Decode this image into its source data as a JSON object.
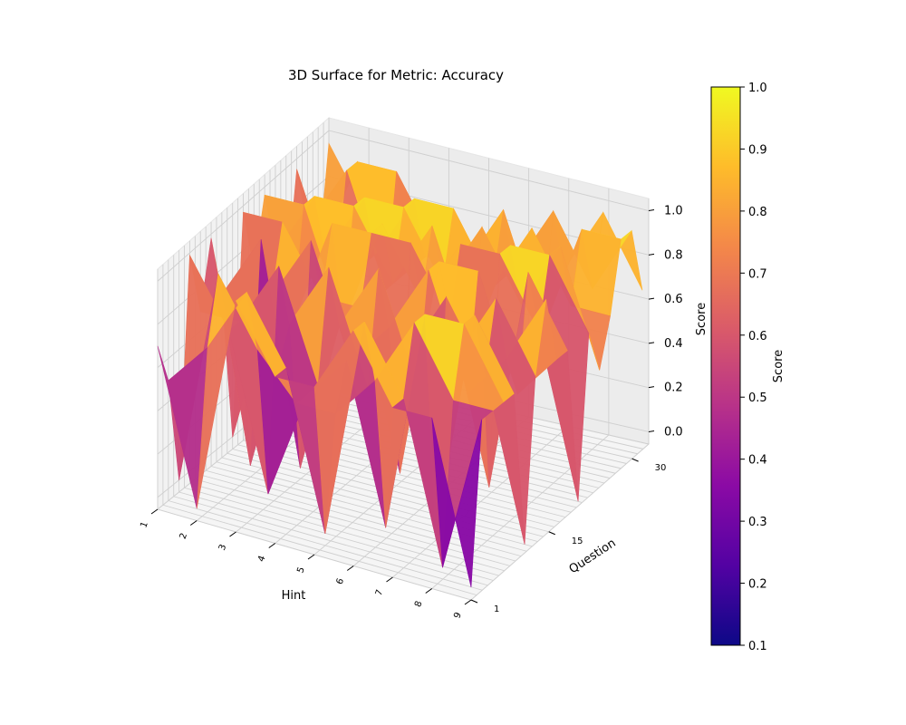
{
  "chart_data": {
    "type": "surface3d",
    "title": "3D Surface for Metric: Accuracy",
    "xlabel": "Hint",
    "ylabel": "Question",
    "zlabel": "Score",
    "x_ticks": [
      "1",
      "2",
      "3",
      "4",
      "5",
      "6",
      "7",
      "8",
      "9"
    ],
    "y_ticks": [
      "1",
      "15",
      "30"
    ],
    "z_ticks": [
      "0.0",
      "0.2",
      "0.4",
      "0.6",
      "0.8",
      "1.0"
    ],
    "xlim": [
      1,
      9
    ],
    "ylim": [
      1,
      33
    ],
    "zlim": [
      0,
      1
    ],
    "grid": true,
    "colormap": "plasma",
    "colormap_stops": [
      "#0d0887",
      "#5302a3",
      "#8b0aa5",
      "#b83289",
      "#db5c68",
      "#f48849",
      "#febc2a",
      "#f0f921"
    ],
    "colorbar": {
      "label": "Score",
      "range": [
        0.1,
        1.0
      ],
      "ticks": [
        "0.1",
        "0.2",
        "0.3",
        "0.4",
        "0.5",
        "0.6",
        "0.7",
        "0.8",
        "0.9",
        "1.0"
      ]
    },
    "series": [
      {
        "y": 1,
        "values": [
          0.7,
          0.0,
          1.0,
          0.7,
          0.7,
          1.0,
          0.7,
          0.7,
          0.0
        ]
      },
      {
        "y": 3,
        "values": [
          0.5,
          0.7,
          1.0,
          0.7,
          0.0,
          1.0,
          0.7,
          0.0,
          0.7
        ]
      },
      {
        "y": 5,
        "values": [
          0.0,
          1.0,
          0.7,
          0.5,
          0.5,
          0.7,
          1.0,
          0.7,
          0.7
        ]
      },
      {
        "y": 7,
        "values": [
          1.0,
          0.7,
          0.0,
          0.5,
          0.7,
          0.0,
          1.0,
          1.0,
          0.7
        ]
      },
      {
        "y": 9,
        "values": [
          0.7,
          0.7,
          1.0,
          0.5,
          0.5,
          0.7,
          0.0,
          1.0,
          0.7
        ]
      },
      {
        "y": 11,
        "values": [
          1.0,
          0.0,
          0.7,
          1.0,
          0.5,
          0.7,
          1.0,
          0.7,
          0.0
        ]
      },
      {
        "y": 13,
        "values": [
          0.7,
          1.0,
          0.0,
          0.7,
          1.0,
          0.5,
          0.7,
          1.0,
          0.7
        ]
      },
      {
        "y": 15,
        "values": [
          0.0,
          0.7,
          1.0,
          0.5,
          0.7,
          1.0,
          0.5,
          0.7,
          1.0
        ]
      },
      {
        "y": 17,
        "values": [
          1.0,
          1.0,
          0.7,
          0.7,
          0.0,
          1.0,
          1.0,
          0.5,
          0.7
        ]
      },
      {
        "y": 19,
        "values": [
          0.7,
          0.5,
          1.0,
          1.0,
          1.0,
          0.7,
          0.0,
          1.0,
          0.7
        ]
      },
      {
        "y": 21,
        "values": [
          1.0,
          1.0,
          0.5,
          1.0,
          0.7,
          1.0,
          1.0,
          0.7,
          0.0
        ]
      },
      {
        "y": 23,
        "values": [
          0.7,
          1.0,
          1.0,
          0.7,
          1.0,
          0.5,
          1.0,
          1.0,
          0.7
        ]
      },
      {
        "y": 25,
        "values": [
          0.5,
          0.7,
          1.0,
          1.0,
          0.7,
          1.0,
          0.7,
          1.0,
          0.5
        ]
      },
      {
        "y": 27,
        "values": [
          1.0,
          0.5,
          0.7,
          1.0,
          1.0,
          0.7,
          1.0,
          0.7,
          0.7
        ]
      },
      {
        "y": 29,
        "values": [
          0.7,
          1.0,
          0.5,
          0.7,
          0.7,
          1.0,
          0.5,
          1.0,
          1.0
        ]
      },
      {
        "y": 31,
        "values": [
          0.5,
          1.0,
          1.0,
          0.7,
          0.5,
          0.7,
          1.0,
          0.7,
          1.0
        ]
      },
      {
        "y": 33,
        "values": [
          1.0,
          0.7,
          0.5,
          0.7,
          0.5,
          0.7,
          0.7,
          1.0,
          0.7
        ]
      }
    ]
  }
}
